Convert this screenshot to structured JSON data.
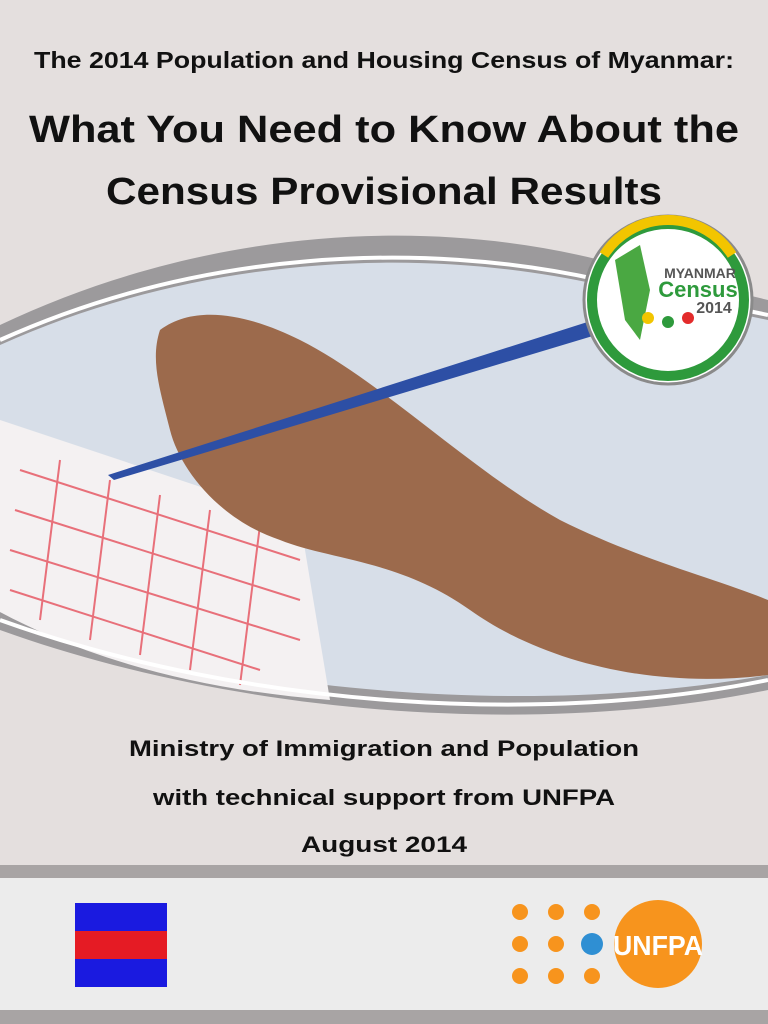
{
  "header": {
    "subtitle": "The 2014 Population and Housing Census of Myanmar:",
    "title_lines": [
      "What You Need to Know About the",
      "Census Provisional Results"
    ]
  },
  "census_logo": {
    "country": "MYANMAR",
    "word": "Census",
    "year": "2014"
  },
  "credits": [
    "Ministry of Immigration and Population",
    "with technical support from UNFPA",
    "August 2014"
  ],
  "footer": {
    "unfpa_logo": "UNFPA"
  }
}
